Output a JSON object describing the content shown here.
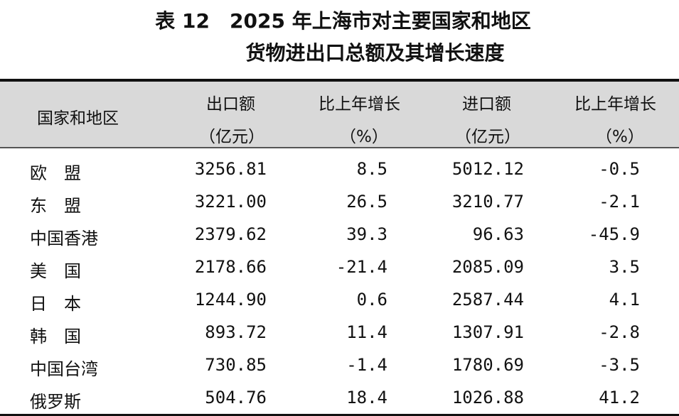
{
  "title": {
    "line1": "表 12　2025 年上海市对主要国家和地区",
    "line2": "货物进出口总额及其增长速度"
  },
  "header": {
    "country": "国家和地区",
    "export": "出口额",
    "export_unit": "（亿元）",
    "export_growth": "比上年增长",
    "export_growth_unit": "（%）",
    "import": "进口额",
    "import_unit": "（亿元）",
    "import_growth": "比上年增长",
    "import_growth_unit": "（%）"
  },
  "rows": [
    {
      "name": "欧　盟",
      "export": "3256.81",
      "export_growth": "8.5",
      "import": "5012.12",
      "import_growth": "-0.5"
    },
    {
      "name": "东　盟",
      "export": "3221.00",
      "export_growth": "26.5",
      "import": "3210.77",
      "import_growth": "-2.1"
    },
    {
      "name": "中国香港",
      "export": "2379.62",
      "export_growth": "39.3",
      "import": "96.63",
      "import_growth": "-45.9"
    },
    {
      "name": "美　国",
      "export": "2178.66",
      "export_growth": "-21.4",
      "import": "2085.09",
      "import_growth": "3.5"
    },
    {
      "name": "日　本",
      "export": "1244.90",
      "export_growth": "0.6",
      "import": "2587.44",
      "import_growth": "4.1"
    },
    {
      "name": "韩　国",
      "export": "893.72",
      "export_growth": "11.4",
      "import": "1307.91",
      "import_growth": "-2.8"
    },
    {
      "name": "中国台湾",
      "export": "730.85",
      "export_growth": "-1.4",
      "import": "1780.69",
      "import_growth": "-3.5"
    },
    {
      "name": "俄罗斯",
      "export": "504.76",
      "export_growth": "18.4",
      "import": "1026.88",
      "import_growth": "41.2"
    }
  ]
}
